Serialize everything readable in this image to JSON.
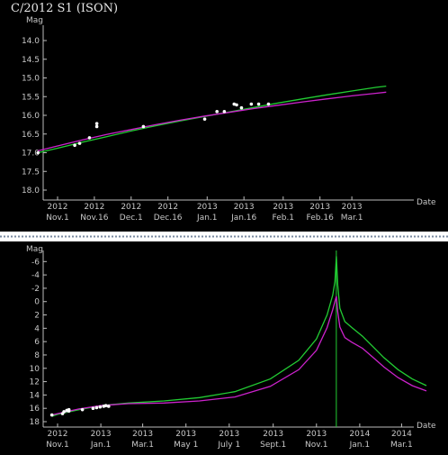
{
  "chart_data": [
    {
      "type": "line",
      "title": "C/2012 S1 (ISON)",
      "ylabel": "Mag",
      "xlabel": "Date",
      "ylim": [
        14.0,
        18.0
      ],
      "y_inverted": true,
      "yticks": [
        "14.0",
        "14.5",
        "15.0",
        "15.5",
        "16.0",
        "16.5",
        "17.0",
        "17.5",
        "18.0"
      ],
      "xlim_days": [
        0,
        135
      ],
      "xticks": [
        {
          "day": 0,
          "year": "2012",
          "date": "Nov.1"
        },
        {
          "day": 15,
          "year": "2012",
          "date": "Nov.16"
        },
        {
          "day": 30,
          "year": "2012",
          "date": "Dec.1"
        },
        {
          "day": 45,
          "year": "2012",
          "date": "Dec.16"
        },
        {
          "day": 61,
          "year": "2013",
          "date": "Jan.1"
        },
        {
          "day": 76,
          "year": "2013",
          "date": "Jan.16"
        },
        {
          "day": 92,
          "year": "2013",
          "date": "Feb.1"
        },
        {
          "day": 107,
          "year": "2013",
          "date": "Feb.16"
        },
        {
          "day": 120,
          "year": "2013",
          "date": "Mar.1"
        }
      ],
      "grid": false,
      "series": [
        {
          "color": "#22cc33",
          "x": [
            -8,
            0,
            10,
            20,
            30,
            40,
            50,
            60,
            70,
            80,
            90,
            100,
            110,
            120,
            130,
            134
          ],
          "y": [
            17.0,
            16.88,
            16.72,
            16.57,
            16.42,
            16.28,
            16.15,
            16.03,
            15.91,
            15.79,
            15.67,
            15.56,
            15.45,
            15.35,
            15.25,
            15.22
          ]
        },
        {
          "color": "#cc22cc",
          "x": [
            -8,
            0,
            10,
            20,
            30,
            40,
            50,
            60,
            70,
            80,
            90,
            100,
            110,
            120,
            130,
            134
          ],
          "y": [
            16.95,
            16.82,
            16.66,
            16.51,
            16.38,
            16.25,
            16.13,
            16.02,
            15.92,
            15.82,
            15.73,
            15.64,
            15.56,
            15.48,
            15.41,
            15.38
          ]
        }
      ],
      "observations": {
        "color": "#ffffff",
        "x": [
          -8,
          7,
          9,
          13,
          16,
          16,
          35,
          60,
          65,
          68,
          72,
          73,
          75,
          79,
          82,
          86
        ],
        "y": [
          17.0,
          16.8,
          16.75,
          16.6,
          16.22,
          16.3,
          16.3,
          16.1,
          15.9,
          15.9,
          15.7,
          15.72,
          15.8,
          15.7,
          15.7,
          15.7
        ]
      }
    },
    {
      "type": "line",
      "ylabel": "Mag",
      "xlabel": "Date",
      "ylim": [
        -8,
        18
      ],
      "y_inverted": true,
      "yticks": [
        "-6",
        "-4",
        "-2",
        "0",
        "2",
        "4",
        "6",
        "8",
        "10",
        "12",
        "14",
        "16",
        "18"
      ],
      "xlim_days": [
        0,
        520
      ],
      "xticks": [
        {
          "day": 0,
          "year": "2012",
          "date": "Nov.1"
        },
        {
          "day": 61,
          "year": "2013",
          "date": "Jan.1"
        },
        {
          "day": 120,
          "year": "2013",
          "date": "Mar.1"
        },
        {
          "day": 181,
          "year": "2013",
          "date": "May 1"
        },
        {
          "day": 242,
          "year": "2013",
          "date": "July 1"
        },
        {
          "day": 304,
          "year": "2013",
          "date": "Sept.1"
        },
        {
          "day": 365,
          "year": "2013",
          "date": "Nov.1"
        },
        {
          "day": 426,
          "year": "2014",
          "date": "Jan.1"
        },
        {
          "day": 485,
          "year": "2014",
          "date": "Mar.1"
        }
      ],
      "grid": false,
      "perihelion_marker": {
        "day": 393,
        "color": "#22cc33"
      },
      "series": [
        {
          "color": "#22cc33",
          "x": [
            -8,
            0,
            30,
            61,
            100,
            150,
            200,
            250,
            300,
            340,
            365,
            380,
            388,
            391,
            393,
            395,
            398,
            405,
            415,
            430,
            445,
            460,
            480,
            500,
            520
          ],
          "y": [
            17.2,
            16.9,
            16.2,
            15.6,
            15.2,
            14.9,
            14.4,
            13.5,
            11.6,
            8.8,
            5.6,
            2.0,
            -1.0,
            -3.0,
            -6.8,
            -2.5,
            1.0,
            3.0,
            3.9,
            5.2,
            6.8,
            8.4,
            10.2,
            11.6,
            12.6
          ]
        },
        {
          "color": "#cc22cc",
          "x": [
            -8,
            0,
            30,
            61,
            100,
            150,
            200,
            250,
            300,
            340,
            365,
            380,
            388,
            391,
            393,
            395,
            398,
            405,
            415,
            430,
            445,
            460,
            480,
            500,
            520
          ],
          "y": [
            17.0,
            16.8,
            16.1,
            15.6,
            15.3,
            15.2,
            14.9,
            14.3,
            12.7,
            10.2,
            7.3,
            3.9,
            1.2,
            0.0,
            -0.8,
            1.5,
            3.8,
            5.4,
            6.1,
            7.0,
            8.4,
            9.8,
            11.4,
            12.6,
            13.4
          ]
        }
      ],
      "observations": {
        "color": "#ffffff",
        "x": [
          -8,
          7,
          9,
          13,
          16,
          16,
          35,
          50,
          55,
          60,
          65,
          68,
          72
        ],
        "y": [
          17.0,
          16.8,
          16.5,
          16.3,
          16.2,
          16.4,
          16.2,
          16.0,
          15.9,
          15.8,
          15.7,
          15.6,
          15.7
        ]
      }
    }
  ]
}
